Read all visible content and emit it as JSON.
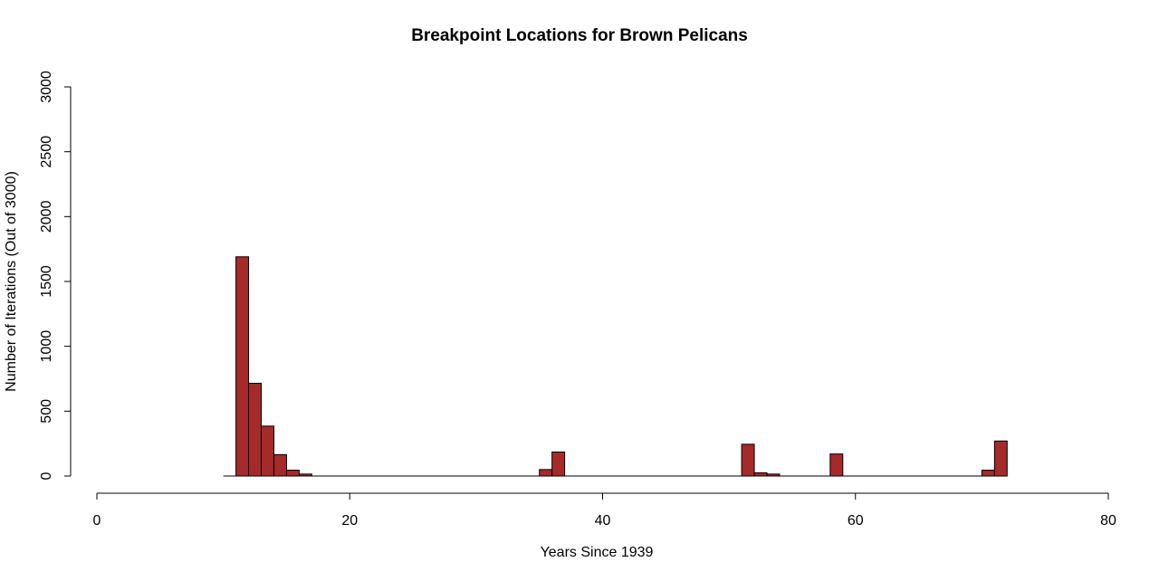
{
  "chart_data": {
    "type": "bar",
    "title": "Breakpoint Locations for Brown Pelicans",
    "xlabel": "Years Since 1939",
    "ylabel": "Number of Iterations (Out of 3000)",
    "xlim": [
      0,
      80
    ],
    "ylim": [
      0,
      3000
    ],
    "xticks": [
      "0",
      "20",
      "40",
      "60",
      "80"
    ],
    "yticks": [
      "0",
      "500",
      "1000",
      "1500",
      "2000",
      "2500",
      "3000"
    ],
    "bar_color": "#a52a2a",
    "bin_width": 1,
    "bins": [
      {
        "x0": 11,
        "count": 1690
      },
      {
        "x0": 12,
        "count": 715
      },
      {
        "x0": 13,
        "count": 385
      },
      {
        "x0": 14,
        "count": 165
      },
      {
        "x0": 15,
        "count": 45
      },
      {
        "x0": 16,
        "count": 15
      },
      {
        "x0": 35,
        "count": 50
      },
      {
        "x0": 36,
        "count": 185
      },
      {
        "x0": 51,
        "count": 245
      },
      {
        "x0": 52,
        "count": 25
      },
      {
        "x0": 53,
        "count": 15
      },
      {
        "x0": 58,
        "count": 170
      },
      {
        "x0": 70,
        "count": 45
      },
      {
        "x0": 71,
        "count": 270
      }
    ],
    "grid": false,
    "legend": "none"
  }
}
